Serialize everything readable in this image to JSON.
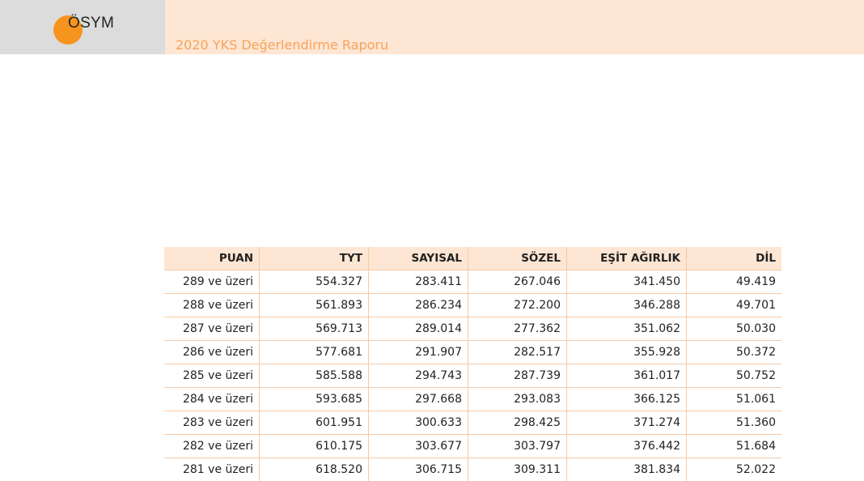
{
  "header": {
    "logo_text": "ÖSYM",
    "report_title": "2020 YKS Değerlendirme Raporu"
  },
  "table": {
    "headers": [
      "PUAN",
      "TYT",
      "SAYISAL",
      "SÖZEL",
      "EŞİT AĞIRLIK",
      "DİL"
    ],
    "rows": [
      [
        "289 ve üzeri",
        "554.327",
        "283.411",
        "267.046",
        "341.450",
        "49.419"
      ],
      [
        "288 ve üzeri",
        "561.893",
        "286.234",
        "272.200",
        "346.288",
        "49.701"
      ],
      [
        "287 ve üzeri",
        "569.713",
        "289.014",
        "277.362",
        "351.062",
        "50.030"
      ],
      [
        "286 ve üzeri",
        "577.681",
        "291.907",
        "282.517",
        "355.928",
        "50.372"
      ],
      [
        "285 ve üzeri",
        "585.588",
        "294.743",
        "287.739",
        "361.017",
        "50.752"
      ],
      [
        "284 ve üzeri",
        "593.685",
        "297.668",
        "293.083",
        "366.125",
        "51.061"
      ],
      [
        "283 ve üzeri",
        "601.951",
        "300.633",
        "298.425",
        "371.274",
        "51.360"
      ],
      [
        "282 ve üzeri",
        "610.175",
        "303.677",
        "303.797",
        "376.442",
        "51.684"
      ],
      [
        "281 ve üzeri",
        "618.520",
        "306.715",
        "309.311",
        "381.834",
        "52.022"
      ]
    ]
  }
}
